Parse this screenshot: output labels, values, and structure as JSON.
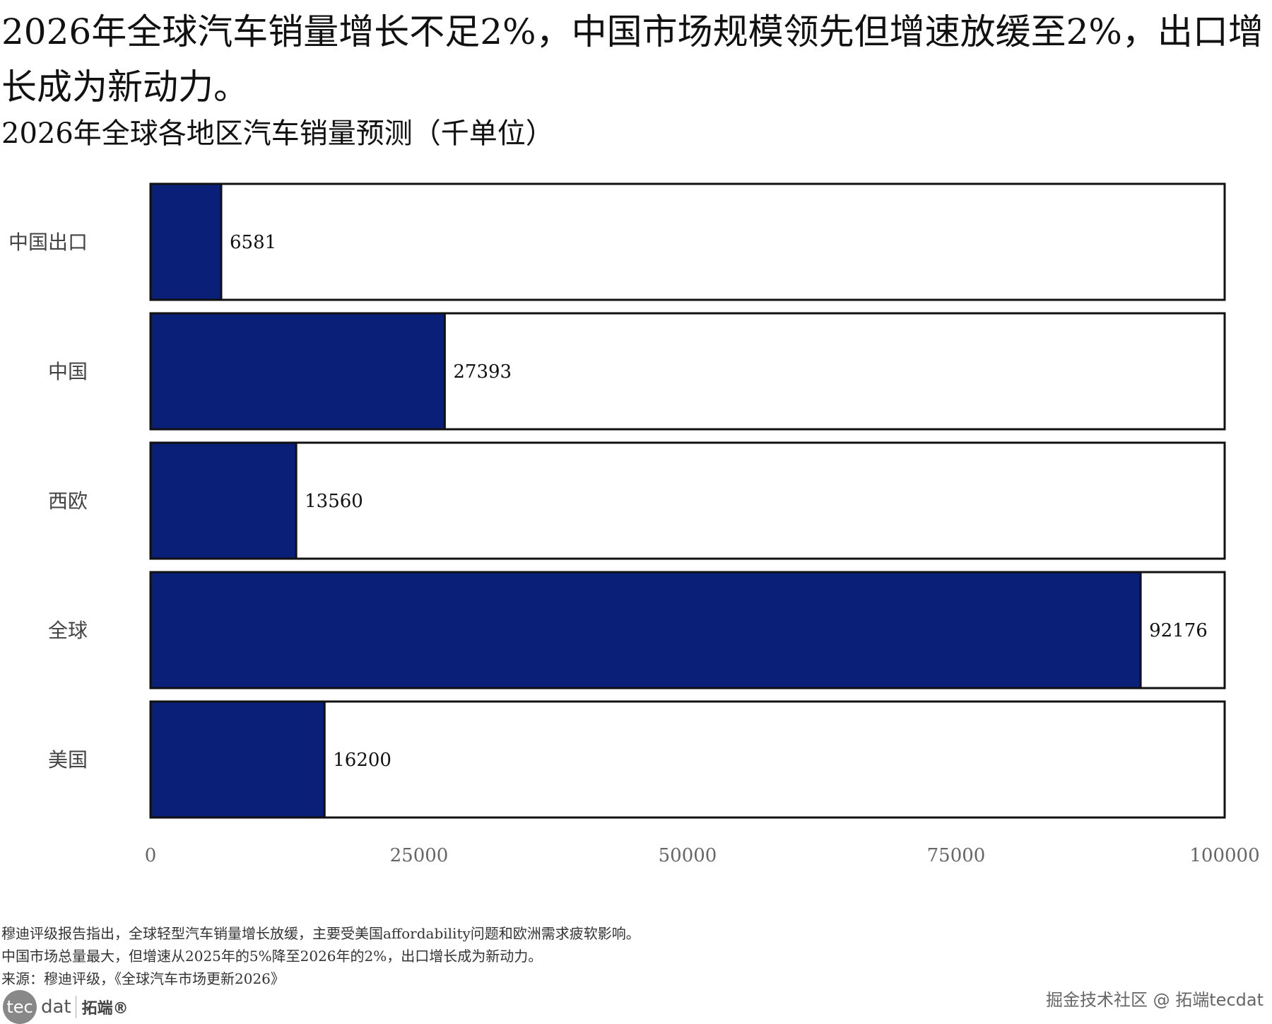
{
  "title": "2026年全球汽车销量增长不足2%，中国市场规模领先但增速放缓至2%，出口增长成为新动力。",
  "chart_data": {
    "type": "bar",
    "orientation": "horizontal",
    "title": "2026年全球各地区汽车销量预测（千单位）",
    "categories": [
      "中国出口",
      "中国",
      "西欧",
      "全球",
      "美国"
    ],
    "values": [
      6581,
      27393,
      13560,
      92176,
      16200
    ],
    "xlim": [
      0,
      100000
    ],
    "xticks": [
      0,
      25000,
      50000,
      75000,
      100000
    ],
    "bar_color": "#0a1f78",
    "grid": false
  },
  "footnotes": [
    "穆迪评级报告指出，全球轻型汽车销量增长放缓，主要受美国affordability问题和欧洲需求疲软影响。",
    "中国市场总量最大，但增速从2025年的5%降至2026年的2%，出口增长成为新动力。",
    "来源：穆迪评级，《全球汽车市场更新2026》"
  ],
  "logo": {
    "circle": "tec",
    "rest": "dat",
    "cn": "拓端®"
  },
  "watermark": "掘金技术社区 @ 拓端tecdat"
}
